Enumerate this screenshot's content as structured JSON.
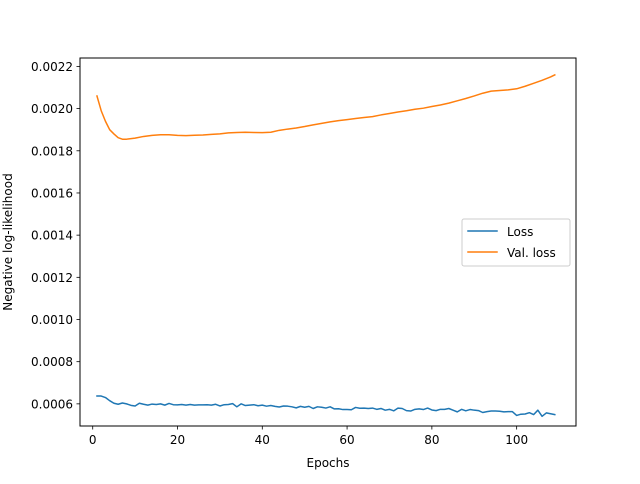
{
  "chart_data": {
    "type": "line",
    "xlabel": "Epochs",
    "ylabel": "Negative log-likelihood",
    "xlim": [
      -3,
      114
    ],
    "ylim": [
      0.000495,
      0.00224
    ],
    "xticks": [
      0,
      20,
      40,
      60,
      80,
      100
    ],
    "xtick_labels": [
      "0",
      "20",
      "40",
      "60",
      "80",
      "100"
    ],
    "yticks": [
      0.0006,
      0.0008,
      0.001,
      0.0012,
      0.0014,
      0.0016,
      0.0018,
      0.002,
      0.0022
    ],
    "ytick_labels": [
      "0.0006",
      "0.0008",
      "0.0010",
      "0.0012",
      "0.0014",
      "0.0016",
      "0.0018",
      "0.0020",
      "0.0022"
    ],
    "grid": false,
    "legend_position": "center-right",
    "series": [
      {
        "name": "Loss",
        "color": "#1f77b4",
        "points": [
          [
            1,
            0.000637
          ],
          [
            2,
            0.000637
          ],
          [
            3,
            0.00063
          ],
          [
            4,
            0.000615
          ],
          [
            5,
            0.000603
          ],
          [
            6,
            0.000598
          ],
          [
            7,
            0.000604
          ],
          [
            8,
            0.0006
          ],
          [
            9,
            0.000593
          ],
          [
            10,
            0.00059
          ],
          [
            11,
            0.000603
          ],
          [
            12,
            0.000598
          ],
          [
            13,
            0.000594
          ],
          [
            14,
            0.000599
          ],
          [
            15,
            0.000597
          ],
          [
            16,
            0.0006
          ],
          [
            17,
            0.000594
          ],
          [
            18,
            0.000602
          ],
          [
            19,
            0.000596
          ],
          [
            20,
            0.000595
          ],
          [
            21,
            0.000597
          ],
          [
            22,
            0.000594
          ],
          [
            23,
            0.000597
          ],
          [
            24,
            0.000594
          ],
          [
            25,
            0.000595
          ],
          [
            26,
            0.000595
          ],
          [
            27,
            0.000596
          ],
          [
            28,
            0.000594
          ],
          [
            29,
            0.000598
          ],
          [
            30,
            0.00059
          ],
          [
            31,
            0.000596
          ],
          [
            32,
            0.000597
          ],
          [
            33,
            0.000601
          ],
          [
            34,
            0.000586
          ],
          [
            35,
            0.0006
          ],
          [
            36,
            0.000592
          ],
          [
            37,
            0.000594
          ],
          [
            38,
            0.000596
          ],
          [
            39,
            0.000591
          ],
          [
            40,
            0.000594
          ],
          [
            41,
            0.000589
          ],
          [
            42,
            0.000592
          ],
          [
            43,
            0.000588
          ],
          [
            44,
            0.000585
          ],
          [
            45,
            0.00059
          ],
          [
            46,
            0.000589
          ],
          [
            47,
            0.000586
          ],
          [
            48,
            0.000581
          ],
          [
            49,
            0.000588
          ],
          [
            50,
            0.000584
          ],
          [
            51,
            0.000588
          ],
          [
            52,
            0.000578
          ],
          [
            53,
            0.000586
          ],
          [
            54,
            0.000584
          ],
          [
            55,
            0.00058
          ],
          [
            56,
            0.000586
          ],
          [
            57,
            0.000576
          ],
          [
            58,
            0.000577
          ],
          [
            59,
            0.000573
          ],
          [
            60,
            0.000573
          ],
          [
            61,
            0.000572
          ],
          [
            62,
            0.000583
          ],
          [
            63,
            0.000579
          ],
          [
            64,
            0.00058
          ],
          [
            65,
            0.000578
          ],
          [
            66,
            0.00058
          ],
          [
            67,
            0.000574
          ],
          [
            68,
            0.000578
          ],
          [
            69,
            0.00057
          ],
          [
            70,
            0.000574
          ],
          [
            71,
            0.000567
          ],
          [
            72,
            0.00058
          ],
          [
            73,
            0.000578
          ],
          [
            74,
            0.000568
          ],
          [
            75,
            0.000566
          ],
          [
            76,
            0.000574
          ],
          [
            77,
            0.000576
          ],
          [
            78,
            0.000573
          ],
          [
            79,
            0.00058
          ],
          [
            80,
            0.000571
          ],
          [
            81,
            0.000568
          ],
          [
            82,
            0.000574
          ],
          [
            83,
            0.000574
          ],
          [
            84,
            0.000578
          ],
          [
            85,
            0.00057
          ],
          [
            86,
            0.000562
          ],
          [
            87,
            0.000574
          ],
          [
            88,
            0.000567
          ],
          [
            89,
            0.000573
          ],
          [
            90,
            0.00057
          ],
          [
            91,
            0.000568
          ],
          [
            92,
            0.000559
          ],
          [
            93,
            0.000563
          ],
          [
            94,
            0.000566
          ],
          [
            95,
            0.000566
          ],
          [
            96,
            0.000565
          ],
          [
            97,
            0.000562
          ],
          [
            98,
            0.000563
          ],
          [
            99,
            0.000563
          ],
          [
            100,
            0.000545
          ],
          [
            101,
            0.000551
          ],
          [
            102,
            0.000552
          ],
          [
            103,
            0.000558
          ],
          [
            104,
            0.000549
          ],
          [
            105,
            0.00057
          ],
          [
            106,
            0.000541
          ],
          [
            107,
            0.000557
          ],
          [
            108,
            0.000553
          ],
          [
            109,
            0.000549
          ]
        ]
      },
      {
        "name": "Val. loss",
        "color": "#ff7f0e",
        "points": [
          [
            1,
            0.00206
          ],
          [
            2,
            0.00199
          ],
          [
            3,
            0.00194
          ],
          [
            4,
            0.0019
          ],
          [
            5,
            0.00188
          ],
          [
            6,
            0.001862
          ],
          [
            7,
            0.001855
          ],
          [
            8,
            0.001855
          ],
          [
            10,
            0.00186
          ],
          [
            12,
            0.001868
          ],
          [
            14,
            0.001873
          ],
          [
            16,
            0.001876
          ],
          [
            18,
            0.001876
          ],
          [
            20,
            0.001873
          ],
          [
            22,
            0.001872
          ],
          [
            24,
            0.001874
          ],
          [
            26,
            0.001875
          ],
          [
            28,
            0.001878
          ],
          [
            30,
            0.00188
          ],
          [
            32,
            0.001885
          ],
          [
            34,
            0.001887
          ],
          [
            36,
            0.001888
          ],
          [
            38,
            0.001887
          ],
          [
            40,
            0.001886
          ],
          [
            42,
            0.001888
          ],
          [
            44,
            0.001897
          ],
          [
            46,
            0.001903
          ],
          [
            48,
            0.001908
          ],
          [
            50,
            0.001915
          ],
          [
            52,
            0.001923
          ],
          [
            54,
            0.00193
          ],
          [
            56,
            0.001937
          ],
          [
            58,
            0.001943
          ],
          [
            60,
            0.001948
          ],
          [
            62,
            0.001953
          ],
          [
            64,
            0.001958
          ],
          [
            66,
            0.001962
          ],
          [
            68,
            0.00197
          ],
          [
            70,
            0.001977
          ],
          [
            72,
            0.001984
          ],
          [
            74,
            0.00199
          ],
          [
            76,
            0.001997
          ],
          [
            78,
            0.002002
          ],
          [
            80,
            0.00201
          ],
          [
            82,
            0.002017
          ],
          [
            84,
            0.002026
          ],
          [
            86,
            0.002037
          ],
          [
            88,
            0.002048
          ],
          [
            90,
            0.00206
          ],
          [
            92,
            0.002073
          ],
          [
            94,
            0.002083
          ],
          [
            96,
            0.002086
          ],
          [
            98,
            0.002089
          ],
          [
            100,
            0.002094
          ],
          [
            102,
            0.002106
          ],
          [
            104,
            0.00212
          ],
          [
            106,
            0.002134
          ],
          [
            108,
            0.00215
          ],
          [
            109,
            0.00216
          ]
        ]
      }
    ]
  }
}
